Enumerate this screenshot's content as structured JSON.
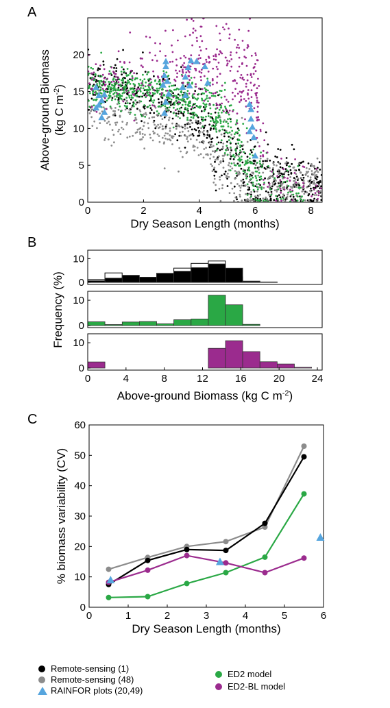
{
  "colors": {
    "remote1": "#000000",
    "remote48": "#8c8c8c",
    "rainfor": "#56a5de",
    "ed2": "#2aa845",
    "ed2bl": "#9b2b8e"
  },
  "chart_data": [
    {
      "panel": "A",
      "type": "scatter",
      "xlabel": "Dry Season Length (months)",
      "ylabel": "Above-ground Biomass (kg C m-2)",
      "ylabel_line1": "Above-ground Biomass",
      "ylabel_line2": "(kg C m",
      "ylabel_sup": "-2",
      "ylabel_close": ")",
      "xlim": [
        0,
        8.4
      ],
      "ylim": [
        0,
        25
      ],
      "xticks": [
        0,
        2,
        4,
        6,
        8
      ],
      "yticks": [
        0,
        5,
        10,
        15,
        20
      ],
      "series": [
        {
          "key": "remote1",
          "trend": [
            [
              0,
              15.8
            ],
            [
              1,
              15.5
            ],
            [
              2,
              14.6
            ],
            [
              3,
              13.2
            ],
            [
              4,
              11
            ],
            [
              5,
              7.5
            ],
            [
              5.6,
              4
            ],
            [
              6.5,
              3
            ],
            [
              8.4,
              2.5
            ]
          ],
          "x": [
            0,
            8.4
          ]
        },
        {
          "key": "remote48",
          "trend": [
            [
              0,
              12.5
            ],
            [
              1,
              11.5
            ],
            [
              2,
              10.5
            ],
            [
              3,
              9.5
            ],
            [
              4,
              8.3
            ],
            [
              5,
              5.5
            ],
            [
              5.6,
              2
            ],
            [
              6.5,
              2.5
            ],
            [
              8.4,
              2.5
            ]
          ],
          "x": [
            0,
            8.4
          ]
        },
        {
          "key": "ed2",
          "trend": [
            [
              0,
              15.6
            ],
            [
              1,
              15.4
            ],
            [
              2,
              15.2
            ],
            [
              3,
              14.6
            ],
            [
              4,
              13.6
            ],
            [
              5,
              10.8
            ],
            [
              5.5,
              6
            ],
            [
              6,
              3
            ],
            [
              6.5,
              1.5
            ],
            [
              8.4,
              1
            ]
          ],
          "x": [
            0,
            8.4
          ]
        },
        {
          "key": "ed2bl",
          "trend": [
            [
              0,
              16.2
            ],
            [
              1,
              16.2
            ],
            [
              2,
              16.6
            ],
            [
              3,
              17.5
            ],
            [
              4,
              17.8
            ],
            [
              5,
              17.5
            ],
            [
              6,
              15.5
            ],
            [
              6.5,
              3
            ],
            [
              8.4,
              2
            ]
          ],
          "x": [
            0,
            8.4
          ]
        },
        {
          "key": "rainfor",
          "points": [
            [
              0.3,
              15.6
            ],
            [
              0.4,
              14.5
            ],
            [
              0.5,
              13.8
            ],
            [
              0.6,
              14.6
            ],
            [
              0.3,
              12.8
            ],
            [
              0.5,
              11.5
            ],
            [
              0.4,
              13.2
            ],
            [
              0.6,
              12.2
            ],
            [
              2.7,
              15.9
            ],
            [
              2.75,
              17.2
            ],
            [
              2.8,
              18.4
            ],
            [
              2.8,
              19.1
            ],
            [
              2.85,
              16.4
            ],
            [
              2.9,
              14.7
            ],
            [
              2.8,
              13.6
            ],
            [
              2.75,
              12.1
            ],
            [
              3.4,
              15.6
            ],
            [
              3.5,
              17
            ],
            [
              3.5,
              14.5
            ],
            [
              3.6,
              18.3
            ],
            [
              3.7,
              19.2
            ],
            [
              3.9,
              19.1
            ],
            [
              4.2,
              18.4
            ],
            [
              4.3,
              16.2
            ],
            [
              3.65,
              15.8
            ],
            [
              5.8,
              13.3
            ],
            [
              5.85,
              11.3
            ],
            [
              5.9,
              10.2
            ],
            [
              5.95,
              8.8
            ],
            [
              6.0,
              6.3
            ],
            [
              5.8,
              9.6
            ],
            [
              5.85,
              12.6
            ]
          ]
        }
      ]
    },
    {
      "panel": "B",
      "type": "bar",
      "xlabel": "Above-ground Biomass (kg C m-2)",
      "xlabel_main": "Above-ground Biomass (kg C m",
      "xlabel_sup": "-2",
      "xlabel_close": ")",
      "ylabel": "Frequency (%)",
      "xlim": [
        0,
        24.5
      ],
      "ylim": [
        0,
        13
      ],
      "xticks": [
        0,
        4,
        8,
        12,
        16,
        20,
        24
      ],
      "yticks": [
        0,
        10
      ],
      "bin_width": 1.8,
      "bin_starts": [
        0,
        1.8,
        3.6,
        5.4,
        7.2,
        9.0,
        10.8,
        12.6,
        14.4,
        16.2,
        18.0,
        19.8,
        21.6
      ],
      "subplots": [
        {
          "key": "remote",
          "values": [
            0.7,
            1.8,
            3.0,
            2.2,
            3.7,
            4.7,
            6.2,
            7.8,
            6.0,
            0.5,
            0.2,
            0,
            0
          ],
          "outline_values": [
            1.2,
            4.0,
            2.2,
            2.0,
            3.8,
            6.0,
            8.0,
            9.0,
            2.3,
            0.5,
            0.1,
            0,
            0
          ]
        },
        {
          "key": "ed2",
          "values": [
            1.5,
            0.4,
            1.4,
            1.6,
            0.7,
            2.3,
            2.6,
            12.0,
            8.2,
            0.5,
            0,
            0,
            0
          ]
        },
        {
          "key": "ed2bl",
          "values": [
            2.4,
            0,
            0,
            0,
            0,
            0,
            0,
            7.8,
            10.8,
            6.5,
            2.5,
            1.6,
            0.3
          ]
        }
      ]
    },
    {
      "panel": "C",
      "type": "line",
      "xlabel": "Dry Season Length (months)",
      "ylabel": "% biomass variability (CV)",
      "xlim": [
        0,
        6
      ],
      "ylim": [
        0,
        60
      ],
      "xticks": [
        0,
        1,
        2,
        3,
        4,
        5,
        6
      ],
      "yticks": [
        0,
        10,
        20,
        30,
        40,
        50,
        60
      ],
      "series": [
        {
          "key": "remote48",
          "x": [
            0.5,
            1.5,
            2.5,
            3.5,
            4.5,
            5.5
          ],
          "y": [
            12.5,
            16.4,
            20.0,
            21.6,
            26.4,
            53.0
          ]
        },
        {
          "key": "remote1",
          "x": [
            0.5,
            1.5,
            2.5,
            3.5,
            4.5,
            5.5
          ],
          "y": [
            7.5,
            15.4,
            19.0,
            18.7,
            27.6,
            49.5
          ]
        },
        {
          "key": "ed2",
          "x": [
            0.5,
            1.5,
            2.5,
            3.5,
            4.5,
            5.5
          ],
          "y": [
            3.2,
            3.5,
            7.8,
            11.4,
            16.5,
            37.3
          ]
        },
        {
          "key": "ed2bl",
          "x": [
            0.5,
            1.5,
            2.5,
            3.5,
            4.5,
            5.5
          ],
          "y": [
            8.2,
            12.2,
            17.0,
            14.6,
            11.4,
            16.2
          ]
        },
        {
          "key": "rainfor",
          "x": [
            0.55,
            3.35,
            5.92
          ],
          "y": [
            9.0,
            15.0,
            23.0
          ]
        }
      ]
    }
  ],
  "panel_labels": {
    "a": "A",
    "b": "B",
    "c": "C"
  },
  "legend": [
    {
      "key": "remote1",
      "symbol": "circle",
      "label": "Remote-sensing (1)"
    },
    {
      "key": "remote48",
      "symbol": "circle",
      "label": "Remote-sensing (48)"
    },
    {
      "key": "rainfor",
      "symbol": "triangle",
      "label": "RAINFOR plots (20,49)"
    },
    {
      "key": "ed2",
      "symbol": "circle",
      "label": "ED2 model"
    },
    {
      "key": "ed2bl",
      "symbol": "circle",
      "label": "ED2-BL model"
    }
  ]
}
